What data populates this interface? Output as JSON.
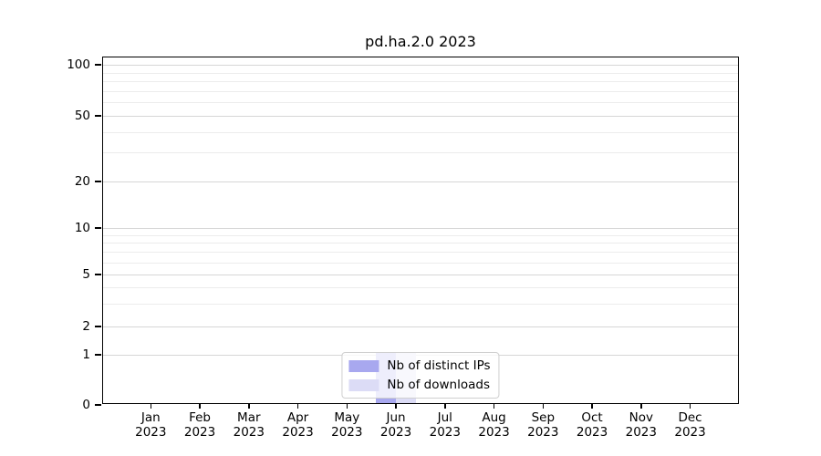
{
  "chart_data": {
    "type": "bar",
    "title": "pd.ha.2.0 2023",
    "categories": [
      "Jan 2023",
      "Feb 2023",
      "Mar 2023",
      "Apr 2023",
      "May 2023",
      "Jun 2023",
      "Jul 2023",
      "Aug 2023",
      "Sep 2023",
      "Oct 2023",
      "Nov 2023",
      "Dec 2023"
    ],
    "x_tick_month": [
      "Jan",
      "Feb",
      "Mar",
      "Apr",
      "May",
      "Jun",
      "Jul",
      "Aug",
      "Sep",
      "Oct",
      "Nov",
      "Dec"
    ],
    "x_tick_year": "2023",
    "series": [
      {
        "name": "Nb of distinct IPs",
        "color": "#a8a8ef",
        "values": [
          0,
          0,
          0,
          0,
          0,
          1,
          0,
          0,
          0,
          0,
          0,
          0
        ]
      },
      {
        "name": "Nb of downloads",
        "color": "#dcdcf6",
        "values": [
          0,
          0,
          0,
          0,
          0,
          1,
          0,
          0,
          0,
          0,
          0,
          0
        ]
      }
    ],
    "xlabel": "",
    "ylabel": "",
    "yscale": "symlog",
    "yticks": [
      0,
      1,
      2,
      5,
      10,
      20,
      50,
      100
    ],
    "y_minor_ticks": [
      3,
      4,
      6,
      7,
      8,
      9,
      30,
      40,
      60,
      70,
      80,
      90
    ],
    "ylim": [
      0,
      100
    ],
    "grid": "horizontal, major and minor",
    "legend_position": "lower center",
    "colors": {
      "major_grid": "#d6d6d6",
      "minor_grid": "#ececec",
      "spine": "#000000",
      "background": "#ffffff"
    }
  }
}
